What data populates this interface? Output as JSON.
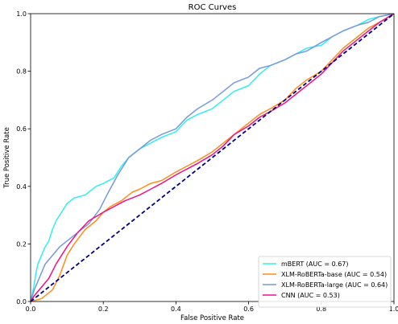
{
  "chart_data": {
    "type": "line",
    "title": "ROC Curves",
    "xlabel": "False Positive Rate",
    "ylabel": "True Positive Rate",
    "xlim": [
      0.0,
      1.0
    ],
    "ylim": [
      0.0,
      1.0
    ],
    "x_ticks": [
      "0.0",
      "0.2",
      "0.4",
      "0.6",
      "0.8",
      "1.0"
    ],
    "y_ticks": [
      "0.0",
      "0.2",
      "0.4",
      "0.6",
      "0.8",
      "1.0"
    ],
    "grid": false,
    "legend_position": "lower-right",
    "diagonal": {
      "color": "#000080",
      "style": "dashed",
      "points": [
        [
          0,
          0
        ],
        [
          1,
          1
        ]
      ]
    },
    "series": [
      {
        "name": "mBERT (AUC = 0.67)",
        "color": "#33eeee",
        "points": [
          [
            0,
            0
          ],
          [
            0.005,
            0.03
          ],
          [
            0.01,
            0.06
          ],
          [
            0.015,
            0.1
          ],
          [
            0.02,
            0.13
          ],
          [
            0.03,
            0.16
          ],
          [
            0.04,
            0.19
          ],
          [
            0.05,
            0.21
          ],
          [
            0.06,
            0.25
          ],
          [
            0.07,
            0.28
          ],
          [
            0.08,
            0.3
          ],
          [
            0.09,
            0.32
          ],
          [
            0.1,
            0.34
          ],
          [
            0.12,
            0.36
          ],
          [
            0.15,
            0.37
          ],
          [
            0.18,
            0.4
          ],
          [
            0.2,
            0.41
          ],
          [
            0.23,
            0.43
          ],
          [
            0.25,
            0.47
          ],
          [
            0.27,
            0.5
          ],
          [
            0.3,
            0.53
          ],
          [
            0.33,
            0.55
          ],
          [
            0.36,
            0.57
          ],
          [
            0.4,
            0.59
          ],
          [
            0.43,
            0.63
          ],
          [
            0.46,
            0.65
          ],
          [
            0.5,
            0.67
          ],
          [
            0.53,
            0.7
          ],
          [
            0.56,
            0.73
          ],
          [
            0.6,
            0.75
          ],
          [
            0.63,
            0.79
          ],
          [
            0.66,
            0.82
          ],
          [
            0.7,
            0.84
          ],
          [
            0.73,
            0.86
          ],
          [
            0.76,
            0.88
          ],
          [
            0.8,
            0.89
          ],
          [
            0.83,
            0.92
          ],
          [
            0.86,
            0.94
          ],
          [
            0.9,
            0.96
          ],
          [
            0.93,
            0.98
          ],
          [
            0.96,
            0.99
          ],
          [
            1.0,
            1.0
          ]
        ]
      },
      {
        "name": "XLM-RoBERTa-base (AUC = 0.54)",
        "color": "#ff8c1a",
        "points": [
          [
            0,
            0
          ],
          [
            0.03,
            0.01
          ],
          [
            0.06,
            0.04
          ],
          [
            0.08,
            0.09
          ],
          [
            0.1,
            0.16
          ],
          [
            0.12,
            0.2
          ],
          [
            0.15,
            0.25
          ],
          [
            0.18,
            0.28
          ],
          [
            0.2,
            0.31
          ],
          [
            0.22,
            0.33
          ],
          [
            0.25,
            0.35
          ],
          [
            0.28,
            0.38
          ],
          [
            0.3,
            0.39
          ],
          [
            0.33,
            0.41
          ],
          [
            0.36,
            0.42
          ],
          [
            0.4,
            0.45
          ],
          [
            0.43,
            0.47
          ],
          [
            0.46,
            0.49
          ],
          [
            0.5,
            0.52
          ],
          [
            0.53,
            0.55
          ],
          [
            0.56,
            0.58
          ],
          [
            0.6,
            0.62
          ],
          [
            0.63,
            0.65
          ],
          [
            0.66,
            0.67
          ],
          [
            0.7,
            0.7
          ],
          [
            0.73,
            0.74
          ],
          [
            0.76,
            0.77
          ],
          [
            0.8,
            0.8
          ],
          [
            0.83,
            0.84
          ],
          [
            0.86,
            0.88
          ],
          [
            0.9,
            0.92
          ],
          [
            0.93,
            0.95
          ],
          [
            0.96,
            0.97
          ],
          [
            1.0,
            1.0
          ]
        ]
      },
      {
        "name": "XLM-RoBERTa-large (AUC = 0.64)",
        "color": "#7799dd",
        "points": [
          [
            0,
            0
          ],
          [
            0.01,
            0.04
          ],
          [
            0.02,
            0.07
          ],
          [
            0.03,
            0.1
          ],
          [
            0.04,
            0.13
          ],
          [
            0.06,
            0.16
          ],
          [
            0.08,
            0.19
          ],
          [
            0.1,
            0.21
          ],
          [
            0.13,
            0.24
          ],
          [
            0.16,
            0.27
          ],
          [
            0.19,
            0.32
          ],
          [
            0.21,
            0.37
          ],
          [
            0.24,
            0.44
          ],
          [
            0.27,
            0.5
          ],
          [
            0.3,
            0.53
          ],
          [
            0.33,
            0.56
          ],
          [
            0.36,
            0.58
          ],
          [
            0.4,
            0.6
          ],
          [
            0.43,
            0.64
          ],
          [
            0.46,
            0.67
          ],
          [
            0.5,
            0.7
          ],
          [
            0.53,
            0.73
          ],
          [
            0.56,
            0.76
          ],
          [
            0.6,
            0.78
          ],
          [
            0.63,
            0.81
          ],
          [
            0.66,
            0.82
          ],
          [
            0.7,
            0.84
          ],
          [
            0.73,
            0.86
          ],
          [
            0.76,
            0.87
          ],
          [
            0.8,
            0.9
          ],
          [
            0.83,
            0.92
          ],
          [
            0.86,
            0.94
          ],
          [
            0.9,
            0.96
          ],
          [
            0.93,
            0.97
          ],
          [
            0.96,
            0.99
          ],
          [
            1.0,
            1.0
          ]
        ]
      },
      {
        "name": "CNN (AUC = 0.53)",
        "color": "#ee1188",
        "points": [
          [
            0,
            0
          ],
          [
            0.01,
            0.02
          ],
          [
            0.03,
            0.05
          ],
          [
            0.05,
            0.08
          ],
          [
            0.07,
            0.13
          ],
          [
            0.1,
            0.19
          ],
          [
            0.13,
            0.24
          ],
          [
            0.16,
            0.28
          ],
          [
            0.2,
            0.31
          ],
          [
            0.23,
            0.33
          ],
          [
            0.26,
            0.35
          ],
          [
            0.3,
            0.37
          ],
          [
            0.33,
            0.39
          ],
          [
            0.36,
            0.41
          ],
          [
            0.4,
            0.44
          ],
          [
            0.43,
            0.46
          ],
          [
            0.46,
            0.48
          ],
          [
            0.5,
            0.51
          ],
          [
            0.53,
            0.54
          ],
          [
            0.56,
            0.58
          ],
          [
            0.6,
            0.61
          ],
          [
            0.63,
            0.64
          ],
          [
            0.66,
            0.66
          ],
          [
            0.7,
            0.69
          ],
          [
            0.73,
            0.72
          ],
          [
            0.76,
            0.75
          ],
          [
            0.8,
            0.79
          ],
          [
            0.83,
            0.83
          ],
          [
            0.86,
            0.87
          ],
          [
            0.9,
            0.91
          ],
          [
            0.93,
            0.94
          ],
          [
            0.96,
            0.97
          ],
          [
            1.0,
            1.0
          ]
        ]
      }
    ]
  }
}
